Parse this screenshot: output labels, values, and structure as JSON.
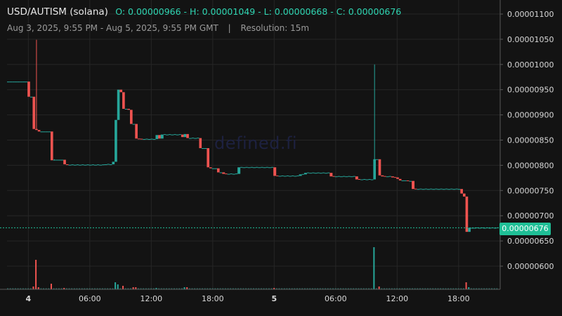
{
  "header": {
    "symbol": "USD/AUTISM (solana)",
    "ohlc": "O: 0.00000966 - H: 0.00001049 - L: 0.00000668 - C: 0.00000676",
    "date_range": "Aug 3, 2025, 9:55 PM - Aug 5, 2025, 9:55 PM GMT",
    "separator": "|",
    "resolution": "Resolution: 15m"
  },
  "watermark": "defined.fi",
  "current_price_label": "0.00000676",
  "colors": {
    "up": "#26a69a",
    "down": "#ef5350",
    "grid": "#262626",
    "axis_text": "#d9d9d9",
    "badge": "#1fbf96",
    "background": "#131313"
  },
  "chart_data": {
    "type": "candlestick",
    "x_unit": "hours since Aug 3, 2025 21:55 GMT",
    "x_ticks": [
      {
        "value": 2.08,
        "label": "4"
      },
      {
        "value": 8.08,
        "label": "06:00"
      },
      {
        "value": 14.08,
        "label": "12:00"
      },
      {
        "value": 20.08,
        "label": "18:00"
      },
      {
        "value": 26.08,
        "label": "5"
      },
      {
        "value": 32.08,
        "label": "06:00"
      },
      {
        "value": 38.08,
        "label": "12:00"
      },
      {
        "value": 44.08,
        "label": "18:00"
      }
    ],
    "y_ticks": [
      6e-06,
      6.5e-06,
      7e-06,
      7.5e-06,
      8e-06,
      8.5e-06,
      9e-06,
      9.5e-06,
      1e-05,
      1.05e-05,
      1.1e-05
    ],
    "y_tick_labels": [
      "0.00000600",
      "0.00000650",
      "0.00000700",
      "0.00000750",
      "0.00000800",
      "0.00000850",
      "0.00000900",
      "0.00000950",
      "0.00001000",
      "0.00001050",
      "0.00001100"
    ],
    "y_range": [
      5.555e-06,
      1.1e-05
    ],
    "x_range": [
      0,
      48
    ],
    "current_price": 6.76e-06,
    "candles": [
      {
        "t": 0.0,
        "o": 9.66,
        "h": 9.66,
        "l": 9.66,
        "c": 9.66
      },
      {
        "t": 0.25,
        "o": 9.66,
        "h": 9.66,
        "l": 9.66,
        "c": 9.66
      },
      {
        "t": 0.5,
        "o": 9.66,
        "h": 9.66,
        "l": 9.66,
        "c": 9.66
      },
      {
        "t": 0.75,
        "o": 9.66,
        "h": 9.66,
        "l": 9.66,
        "c": 9.66
      },
      {
        "t": 1.0,
        "o": 9.66,
        "h": 9.66,
        "l": 9.66,
        "c": 9.66
      },
      {
        "t": 1.25,
        "o": 9.66,
        "h": 9.66,
        "l": 9.66,
        "c": 9.66
      },
      {
        "t": 1.5,
        "o": 9.66,
        "h": 9.66,
        "l": 9.66,
        "c": 9.66
      },
      {
        "t": 1.75,
        "o": 9.66,
        "h": 9.66,
        "l": 9.66,
        "c": 9.66
      },
      {
        "t": 2.0,
        "o": 9.66,
        "h": 9.66,
        "l": 9.36,
        "c": 9.36
      },
      {
        "t": 2.25,
        "o": 9.36,
        "h": 9.36,
        "l": 9.36,
        "c": 9.36
      },
      {
        "t": 2.5,
        "o": 9.36,
        "h": 9.36,
        "l": 8.72,
        "c": 8.72
      },
      {
        "t": 2.75,
        "o": 8.72,
        "h": 10.49,
        "l": 8.7,
        "c": 8.7
      },
      {
        "t": 3.0,
        "o": 8.7,
        "h": 8.7,
        "l": 8.67,
        "c": 8.67
      },
      {
        "t": 3.25,
        "o": 8.67,
        "h": 8.67,
        "l": 8.67,
        "c": 8.67
      },
      {
        "t": 3.5,
        "o": 8.67,
        "h": 8.67,
        "l": 8.67,
        "c": 8.67
      },
      {
        "t": 3.75,
        "o": 8.67,
        "h": 8.67,
        "l": 8.67,
        "c": 8.67
      },
      {
        "t": 4.0,
        "o": 8.67,
        "h": 8.67,
        "l": 8.67,
        "c": 8.67
      },
      {
        "t": 4.25,
        "o": 8.67,
        "h": 8.67,
        "l": 8.1,
        "c": 8.1
      },
      {
        "t": 4.5,
        "o": 8.1,
        "h": 8.12,
        "l": 8.1,
        "c": 8.11
      },
      {
        "t": 4.75,
        "o": 8.11,
        "h": 8.11,
        "l": 8.11,
        "c": 8.11
      },
      {
        "t": 5.0,
        "o": 8.11,
        "h": 8.11,
        "l": 8.11,
        "c": 8.11
      },
      {
        "t": 5.25,
        "o": 8.11,
        "h": 8.11,
        "l": 8.11,
        "c": 8.11
      },
      {
        "t": 5.5,
        "o": 8.11,
        "h": 8.11,
        "l": 8.02,
        "c": 8.02
      },
      {
        "t": 5.75,
        "o": 8.02,
        "h": 8.02,
        "l": 8.01,
        "c": 8.01
      },
      {
        "t": 6.0,
        "o": 8.01,
        "h": 8.01,
        "l": 8.01,
        "c": 8.01
      },
      {
        "t": 6.5,
        "o": 8.01,
        "h": 8.01,
        "l": 8.01,
        "c": 8.01
      },
      {
        "t": 7.0,
        "o": 8.01,
        "h": 8.01,
        "l": 8.01,
        "c": 8.01
      },
      {
        "t": 7.5,
        "o": 8.01,
        "h": 8.01,
        "l": 8.01,
        "c": 8.01
      },
      {
        "t": 8.0,
        "o": 8.01,
        "h": 8.01,
        "l": 8.01,
        "c": 8.01
      },
      {
        "t": 8.5,
        "o": 8.01,
        "h": 8.01,
        "l": 8.01,
        "c": 8.01
      },
      {
        "t": 9.0,
        "o": 8.01,
        "h": 8.01,
        "l": 8.01,
        "c": 8.01
      },
      {
        "t": 9.5,
        "o": 8.01,
        "h": 8.02,
        "l": 8.01,
        "c": 8.02
      },
      {
        "t": 10.0,
        "o": 8.02,
        "h": 8.02,
        "l": 8.02,
        "c": 8.02
      },
      {
        "t": 10.25,
        "o": 8.02,
        "h": 8.07,
        "l": 8.02,
        "c": 8.07
      },
      {
        "t": 10.5,
        "o": 8.07,
        "h": 8.9,
        "l": 8.07,
        "c": 8.9
      },
      {
        "t": 10.75,
        "o": 8.9,
        "h": 9.5,
        "l": 8.9,
        "c": 9.5
      },
      {
        "t": 11.0,
        "o": 9.5,
        "h": 9.5,
        "l": 9.45,
        "c": 9.45
      },
      {
        "t": 11.25,
        "o": 9.45,
        "h": 9.45,
        "l": 9.12,
        "c": 9.12
      },
      {
        "t": 11.5,
        "o": 9.12,
        "h": 9.12,
        "l": 9.12,
        "c": 9.12
      },
      {
        "t": 11.75,
        "o": 9.12,
        "h": 9.12,
        "l": 9.1,
        "c": 9.1
      },
      {
        "t": 12.0,
        "o": 9.1,
        "h": 9.1,
        "l": 8.82,
        "c": 8.82
      },
      {
        "t": 12.25,
        "o": 8.82,
        "h": 8.82,
        "l": 8.82,
        "c": 8.82
      },
      {
        "t": 12.5,
        "o": 8.82,
        "h": 8.82,
        "l": 8.53,
        "c": 8.53
      },
      {
        "t": 12.75,
        "o": 8.53,
        "h": 8.53,
        "l": 8.52,
        "c": 8.52
      },
      {
        "t": 13.25,
        "o": 8.52,
        "h": 8.52,
        "l": 8.52,
        "c": 8.52
      },
      {
        "t": 13.75,
        "o": 8.52,
        "h": 8.52,
        "l": 8.52,
        "c": 8.52
      },
      {
        "t": 14.25,
        "o": 8.52,
        "h": 8.52,
        "l": 8.52,
        "c": 8.52
      },
      {
        "t": 14.5,
        "o": 8.52,
        "h": 8.6,
        "l": 8.52,
        "c": 8.6
      },
      {
        "t": 14.75,
        "o": 8.6,
        "h": 8.6,
        "l": 8.53,
        "c": 8.53
      },
      {
        "t": 15.0,
        "o": 8.53,
        "h": 8.61,
        "l": 8.53,
        "c": 8.61
      },
      {
        "t": 15.5,
        "o": 8.61,
        "h": 8.61,
        "l": 8.61,
        "c": 8.61
      },
      {
        "t": 16.0,
        "o": 8.61,
        "h": 8.61,
        "l": 8.61,
        "c": 8.61
      },
      {
        "t": 16.5,
        "o": 8.61,
        "h": 8.61,
        "l": 8.61,
        "c": 8.61
      },
      {
        "t": 17.0,
        "o": 8.61,
        "h": 8.61,
        "l": 8.56,
        "c": 8.56
      },
      {
        "t": 17.25,
        "o": 8.56,
        "h": 8.62,
        "l": 8.56,
        "c": 8.62
      },
      {
        "t": 17.5,
        "o": 8.62,
        "h": 8.62,
        "l": 8.54,
        "c": 8.54
      },
      {
        "t": 17.75,
        "o": 8.54,
        "h": 8.54,
        "l": 8.54,
        "c": 8.54
      },
      {
        "t": 18.25,
        "o": 8.54,
        "h": 8.54,
        "l": 8.54,
        "c": 8.54
      },
      {
        "t": 18.75,
        "o": 8.54,
        "h": 8.54,
        "l": 8.34,
        "c": 8.34
      },
      {
        "t": 19.0,
        "o": 8.34,
        "h": 8.34,
        "l": 8.34,
        "c": 8.34
      },
      {
        "t": 19.25,
        "o": 8.34,
        "h": 8.34,
        "l": 8.34,
        "c": 8.34
      },
      {
        "t": 19.5,
        "o": 8.34,
        "h": 8.34,
        "l": 7.96,
        "c": 7.96
      },
      {
        "t": 19.75,
        "o": 7.96,
        "h": 7.96,
        "l": 7.94,
        "c": 7.94
      },
      {
        "t": 20.0,
        "o": 7.94,
        "h": 7.94,
        "l": 7.94,
        "c": 7.94
      },
      {
        "t": 20.25,
        "o": 7.94,
        "h": 7.94,
        "l": 7.94,
        "c": 7.94
      },
      {
        "t": 20.5,
        "o": 7.94,
        "h": 7.94,
        "l": 7.86,
        "c": 7.86
      },
      {
        "t": 20.75,
        "o": 7.86,
        "h": 7.86,
        "l": 7.86,
        "c": 7.86
      },
      {
        "t": 21.0,
        "o": 7.86,
        "h": 7.86,
        "l": 7.83,
        "c": 7.83
      },
      {
        "t": 21.5,
        "o": 7.83,
        "h": 7.83,
        "l": 7.83,
        "c": 7.83
      },
      {
        "t": 22.0,
        "o": 7.83,
        "h": 7.83,
        "l": 7.83,
        "c": 7.83
      },
      {
        "t": 22.5,
        "o": 7.83,
        "h": 7.96,
        "l": 7.83,
        "c": 7.96
      },
      {
        "t": 23.0,
        "o": 7.96,
        "h": 7.96,
        "l": 7.96,
        "c": 7.96
      },
      {
        "t": 23.5,
        "o": 7.96,
        "h": 7.96,
        "l": 7.96,
        "c": 7.96
      },
      {
        "t": 24.0,
        "o": 7.96,
        "h": 7.96,
        "l": 7.96,
        "c": 7.96
      },
      {
        "t": 24.5,
        "o": 7.96,
        "h": 7.96,
        "l": 7.96,
        "c": 7.96
      },
      {
        "t": 25.0,
        "o": 7.96,
        "h": 7.96,
        "l": 7.96,
        "c": 7.96
      },
      {
        "t": 25.5,
        "o": 7.96,
        "h": 7.96,
        "l": 7.96,
        "c": 7.96
      },
      {
        "t": 26.0,
        "o": 7.96,
        "h": 7.96,
        "l": 7.79,
        "c": 7.79
      },
      {
        "t": 26.5,
        "o": 7.79,
        "h": 7.79,
        "l": 7.79,
        "c": 7.79
      },
      {
        "t": 27.0,
        "o": 7.79,
        "h": 7.79,
        "l": 7.79,
        "c": 7.79
      },
      {
        "t": 27.5,
        "o": 7.79,
        "h": 7.79,
        "l": 7.79,
        "c": 7.79
      },
      {
        "t": 28.0,
        "o": 7.79,
        "h": 7.79,
        "l": 7.79,
        "c": 7.79
      },
      {
        "t": 28.5,
        "o": 7.79,
        "h": 7.82,
        "l": 7.79,
        "c": 7.82
      },
      {
        "t": 29.0,
        "o": 7.82,
        "h": 7.85,
        "l": 7.82,
        "c": 7.85
      },
      {
        "t": 29.5,
        "o": 7.85,
        "h": 7.85,
        "l": 7.85,
        "c": 7.85
      },
      {
        "t": 30.0,
        "o": 7.85,
        "h": 7.85,
        "l": 7.85,
        "c": 7.85
      },
      {
        "t": 30.5,
        "o": 7.85,
        "h": 7.85,
        "l": 7.85,
        "c": 7.85
      },
      {
        "t": 31.0,
        "o": 7.85,
        "h": 7.85,
        "l": 7.85,
        "c": 7.85
      },
      {
        "t": 31.5,
        "o": 7.85,
        "h": 7.85,
        "l": 7.78,
        "c": 7.78
      },
      {
        "t": 32.0,
        "o": 7.78,
        "h": 7.78,
        "l": 7.78,
        "c": 7.78
      },
      {
        "t": 32.5,
        "o": 7.78,
        "h": 7.78,
        "l": 7.78,
        "c": 7.78
      },
      {
        "t": 33.0,
        "o": 7.78,
        "h": 7.78,
        "l": 7.78,
        "c": 7.78
      },
      {
        "t": 33.5,
        "o": 7.78,
        "h": 7.78,
        "l": 7.78,
        "c": 7.78
      },
      {
        "t": 34.0,
        "o": 7.78,
        "h": 7.78,
        "l": 7.72,
        "c": 7.72
      },
      {
        "t": 34.5,
        "o": 7.72,
        "h": 7.72,
        "l": 7.72,
        "c": 7.72
      },
      {
        "t": 35.0,
        "o": 7.72,
        "h": 7.72,
        "l": 7.72,
        "c": 7.72
      },
      {
        "t": 35.5,
        "o": 7.72,
        "h": 7.72,
        "l": 7.72,
        "c": 7.72
      },
      {
        "t": 35.75,
        "o": 7.72,
        "h": 10.0,
        "l": 7.72,
        "c": 8.12
      },
      {
        "t": 36.0,
        "o": 8.12,
        "h": 8.12,
        "l": 8.12,
        "c": 8.12
      },
      {
        "t": 36.25,
        "o": 8.12,
        "h": 8.12,
        "l": 7.8,
        "c": 7.8
      },
      {
        "t": 36.5,
        "o": 7.8,
        "h": 7.8,
        "l": 7.78,
        "c": 7.78
      },
      {
        "t": 37.0,
        "o": 7.78,
        "h": 7.78,
        "l": 7.78,
        "c": 7.78
      },
      {
        "t": 37.5,
        "o": 7.78,
        "h": 7.78,
        "l": 7.76,
        "c": 7.76
      },
      {
        "t": 38.0,
        "o": 7.76,
        "h": 7.76,
        "l": 7.73,
        "c": 7.73
      },
      {
        "t": 38.25,
        "o": 7.73,
        "h": 7.73,
        "l": 7.7,
        "c": 7.7
      },
      {
        "t": 38.5,
        "o": 7.7,
        "h": 7.7,
        "l": 7.7,
        "c": 7.7
      },
      {
        "t": 38.75,
        "o": 7.7,
        "h": 7.7,
        "l": 7.7,
        "c": 7.7
      },
      {
        "t": 39.0,
        "o": 7.7,
        "h": 7.7,
        "l": 7.69,
        "c": 7.69
      },
      {
        "t": 39.25,
        "o": 7.69,
        "h": 7.69,
        "l": 7.69,
        "c": 7.69
      },
      {
        "t": 39.5,
        "o": 7.69,
        "h": 7.69,
        "l": 7.53,
        "c": 7.53
      },
      {
        "t": 40.0,
        "o": 7.53,
        "h": 7.53,
        "l": 7.53,
        "c": 7.53
      },
      {
        "t": 40.5,
        "o": 7.53,
        "h": 7.53,
        "l": 7.53,
        "c": 7.53
      },
      {
        "t": 41.0,
        "o": 7.53,
        "h": 7.53,
        "l": 7.53,
        "c": 7.53
      },
      {
        "t": 41.5,
        "o": 7.53,
        "h": 7.53,
        "l": 7.53,
        "c": 7.53
      },
      {
        "t": 42.0,
        "o": 7.53,
        "h": 7.53,
        "l": 7.53,
        "c": 7.53
      },
      {
        "t": 42.5,
        "o": 7.53,
        "h": 7.53,
        "l": 7.53,
        "c": 7.53
      },
      {
        "t": 43.0,
        "o": 7.53,
        "h": 7.53,
        "l": 7.53,
        "c": 7.53
      },
      {
        "t": 43.5,
        "o": 7.53,
        "h": 7.53,
        "l": 7.53,
        "c": 7.53
      },
      {
        "t": 44.0,
        "o": 7.53,
        "h": 7.53,
        "l": 7.53,
        "c": 7.53
      },
      {
        "t": 44.25,
        "o": 7.53,
        "h": 7.53,
        "l": 7.44,
        "c": 7.44
      },
      {
        "t": 44.5,
        "o": 7.44,
        "h": 7.44,
        "l": 7.38,
        "c": 7.38
      },
      {
        "t": 44.75,
        "o": 7.38,
        "h": 7.38,
        "l": 6.68,
        "c": 6.68
      },
      {
        "t": 45.0,
        "o": 6.68,
        "h": 6.76,
        "l": 6.68,
        "c": 6.76
      },
      {
        "t": 45.25,
        "o": 6.76,
        "h": 6.76,
        "l": 6.76,
        "c": 6.76
      },
      {
        "t": 45.5,
        "o": 6.76,
        "h": 6.76,
        "l": 6.76,
        "c": 6.76
      },
      {
        "t": 46.0,
        "o": 6.76,
        "h": 6.76,
        "l": 6.76,
        "c": 6.76
      },
      {
        "t": 46.5,
        "o": 6.76,
        "h": 6.76,
        "l": 6.76,
        "c": 6.76
      },
      {
        "t": 47.0,
        "o": 6.76,
        "h": 6.76,
        "l": 6.76,
        "c": 6.76
      },
      {
        "t": 47.5,
        "o": 6.76,
        "h": 6.76,
        "l": 6.76,
        "c": 6.76
      }
    ],
    "price_scale": 1e-06,
    "volume": [
      {
        "t": 2.5,
        "v": 4,
        "up": false
      },
      {
        "t": 2.75,
        "v": 42,
        "up": false
      },
      {
        "t": 3.0,
        "v": 3,
        "up": false
      },
      {
        "t": 4.25,
        "v": 8,
        "up": false
      },
      {
        "t": 5.5,
        "v": 2,
        "up": false
      },
      {
        "t": 10.5,
        "v": 10,
        "up": true
      },
      {
        "t": 10.75,
        "v": 7,
        "up": true
      },
      {
        "t": 11.25,
        "v": 5,
        "up": false
      },
      {
        "t": 12.25,
        "v": 3,
        "up": false
      },
      {
        "t": 12.5,
        "v": 3,
        "up": false
      },
      {
        "t": 14.5,
        "v": 2,
        "up": true
      },
      {
        "t": 17.25,
        "v": 3,
        "up": true
      },
      {
        "t": 17.5,
        "v": 3,
        "up": false
      },
      {
        "t": 26.0,
        "v": 2,
        "up": false
      },
      {
        "t": 35.75,
        "v": 60,
        "up": true
      },
      {
        "t": 36.25,
        "v": 4,
        "up": false
      },
      {
        "t": 44.75,
        "v": 10,
        "up": false
      },
      {
        "t": 45.0,
        "v": 3,
        "up": true
      }
    ]
  }
}
